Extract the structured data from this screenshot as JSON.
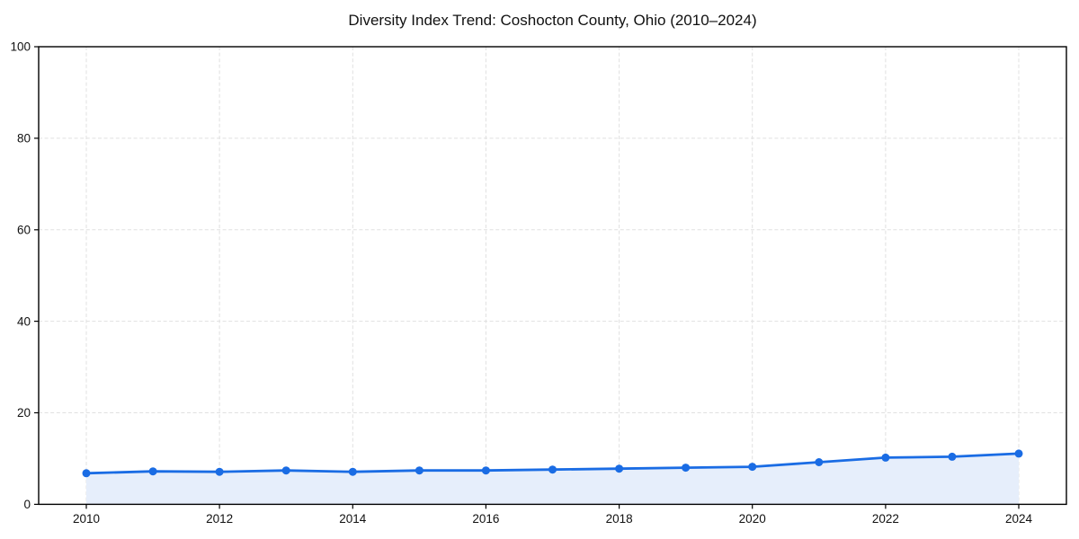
{
  "page": {
    "background": "#ffffff"
  },
  "chart_data": {
    "type": "line",
    "title": "Diversity Index Trend: Coshocton County, Ohio (2010–2024)",
    "x": [
      2010,
      2011,
      2012,
      2013,
      2014,
      2015,
      2016,
      2017,
      2018,
      2019,
      2020,
      2021,
      2022,
      2023,
      2024
    ],
    "series": [
      {
        "name": "Diversity Index",
        "values": [
          6.8,
          7.2,
          7.1,
          7.4,
          7.1,
          7.4,
          7.4,
          7.6,
          7.8,
          8.0,
          8.2,
          9.2,
          10.2,
          10.4,
          11.1
        ]
      }
    ],
    "xlabel": "",
    "ylabel": "",
    "ylim": [
      0,
      100
    ],
    "xticks": [
      2010,
      2012,
      2014,
      2016,
      2018,
      2020,
      2022,
      2024
    ],
    "yticks": [
      0,
      20,
      40,
      60,
      80,
      100
    ],
    "grid": true,
    "grid_style": "dashed",
    "legend_position": "none",
    "marker": "circle",
    "area_fill": true,
    "colors": {
      "line": "#1a6ce4",
      "marker": "#1a6ce4",
      "area": "#e6eefb",
      "grid": "#e0e0e0",
      "axis": "#000000",
      "title_text": "#111111",
      "tick_text": "#111111",
      "background": "#ffffff"
    }
  }
}
